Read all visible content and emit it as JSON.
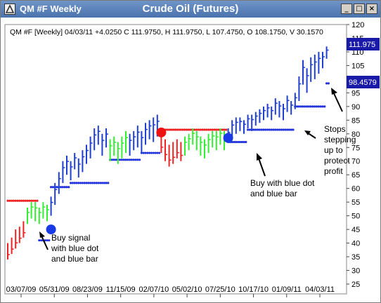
{
  "window": {
    "symbol_title": "QM #F Weekly",
    "chart_title": "Crude Oil (Futures)",
    "min_glyph": "_",
    "max_glyph": "□",
    "close_glyph": "×"
  },
  "info_line": "QM #F [Weekly] 04/03/11  +4.0250 C 111.9750, H 111.9750, L 107.4750, O 108.1750, V 30.1570",
  "price_labels": {
    "last_price": "111.975",
    "stop_price": "98.4579"
  },
  "annotations": {
    "buy_signal": [
      "Buy signal",
      "with blue dot",
      "and blue bar"
    ],
    "buy_again": [
      "Buy with blue dot",
      "and blue bar"
    ],
    "stops": [
      "Stops",
      "stepping",
      "up to",
      "protect",
      "profit"
    ]
  },
  "colors": {
    "up": "#1f3fd0",
    "neutral": "#33ee33",
    "down": "#ee2222",
    "stop_long": "#2233dd",
    "stop_short": "#ee2222",
    "title_bar": "#5a80b8"
  },
  "chart_data": {
    "type": "bar",
    "title": "Crude Oil (Futures)",
    "period": "Weekly",
    "x_tick_labels": [
      "03/07/09",
      "05/31/09",
      "08/23/09",
      "11/15/09",
      "02/07/10",
      "05/02/10",
      "07/25/10",
      "10/17/10",
      "01/09/11",
      "04/03/11"
    ],
    "y_ticks": [
      25,
      30,
      35,
      40,
      45,
      50,
      55,
      60,
      65,
      70,
      75,
      80,
      85,
      90,
      95,
      100,
      105,
      110,
      115,
      120
    ],
    "ylim": [
      25,
      120
    ],
    "last_bar": {
      "date": "04/03/11",
      "change": 4.025,
      "close": 111.975,
      "high": 111.975,
      "low": 107.475,
      "open": 108.175,
      "volume": 30.157
    },
    "bars_by_phase": [
      {
        "color": "down",
        "start": 0,
        "values": [
          [
            34,
            40
          ],
          [
            36,
            42
          ],
          [
            38,
            45
          ],
          [
            40,
            46
          ],
          [
            42,
            48
          ]
        ]
      },
      {
        "color": "neutral",
        "start": 5,
        "values": [
          [
            47,
            53
          ],
          [
            49,
            55
          ],
          [
            48,
            55
          ],
          [
            47,
            53
          ],
          [
            49,
            55
          ],
          [
            48,
            54
          ]
        ]
      },
      {
        "color": "up",
        "start": 11,
        "values": [
          [
            50,
            57
          ],
          [
            54,
            62
          ],
          [
            58,
            66
          ],
          [
            62,
            70
          ],
          [
            65,
            72
          ],
          [
            63,
            70
          ],
          [
            67,
            73
          ],
          [
            64,
            71
          ],
          [
            66,
            74
          ],
          [
            69,
            76
          ],
          [
            71,
            79
          ],
          [
            74,
            82
          ],
          [
            76,
            83
          ],
          [
            72,
            80
          ],
          [
            75,
            82
          ]
        ]
      },
      {
        "color": "neutral",
        "start": 26,
        "values": [
          [
            70,
            78
          ],
          [
            72,
            79
          ],
          [
            69,
            77
          ],
          [
            71,
            79
          ],
          [
            73,
            81
          ]
        ]
      },
      {
        "color": "up",
        "start": 31,
        "values": [
          [
            72,
            80
          ],
          [
            74,
            81
          ],
          [
            75,
            83
          ],
          [
            73,
            81
          ],
          [
            76,
            84
          ],
          [
            78,
            85
          ],
          [
            77,
            86
          ],
          [
            79,
            87
          ]
        ]
      },
      {
        "color": "down",
        "start": 39,
        "values": [
          [
            73,
            80
          ],
          [
            70,
            78
          ],
          [
            68,
            76
          ],
          [
            69,
            77
          ],
          [
            71,
            78
          ],
          [
            70,
            77
          ]
        ]
      },
      {
        "color": "neutral",
        "start": 45,
        "values": [
          [
            72,
            79
          ],
          [
            74,
            80
          ],
          [
            76,
            82
          ],
          [
            74,
            81
          ],
          [
            72,
            79
          ],
          [
            71,
            78
          ],
          [
            73,
            80
          ],
          [
            75,
            81
          ],
          [
            74,
            81
          ],
          [
            76,
            82
          ],
          [
            74,
            81
          ]
        ]
      },
      {
        "color": "up",
        "start": 56,
        "values": [
          [
            77,
            82
          ],
          [
            79,
            85
          ],
          [
            80,
            86
          ],
          [
            81,
            86
          ],
          [
            80,
            85
          ],
          [
            82,
            87
          ],
          [
            81,
            87
          ],
          [
            83,
            88
          ],
          [
            84,
            89
          ],
          [
            85,
            90
          ],
          [
            86,
            91
          ],
          [
            85,
            90
          ],
          [
            87,
            93
          ],
          [
            86,
            92
          ],
          [
            85,
            91
          ],
          [
            88,
            94
          ],
          [
            87,
            92
          ],
          [
            89,
            95
          ],
          [
            92,
            101
          ],
          [
            98,
            107
          ],
          [
            95,
            104
          ],
          [
            99,
            108
          ],
          [
            100,
            109
          ],
          [
            102,
            110
          ],
          [
            104,
            110
          ],
          [
            107.475,
            111.975
          ]
        ]
      }
    ],
    "stop_lines": [
      {
        "type": "short",
        "start": 0,
        "end": 8,
        "value": 55.5
      },
      {
        "type": "long",
        "start": 8,
        "end": 11,
        "value": 41
      },
      {
        "type": "long",
        "start": 11,
        "end": 16,
        "value": 60.5
      },
      {
        "type": "long",
        "start": 16,
        "end": 26,
        "value": 62
      },
      {
        "type": "long",
        "start": 26,
        "end": 34,
        "value": 70.5
      },
      {
        "type": "long",
        "start": 34,
        "end": 39,
        "value": 73
      },
      {
        "type": "short",
        "start": 39,
        "end": 56,
        "value": 81.5
      },
      {
        "type": "long",
        "start": 56,
        "end": 61,
        "value": 77
      },
      {
        "type": "long",
        "start": 61,
        "end": 73,
        "value": 81.5
      },
      {
        "type": "long",
        "start": 73,
        "end": 81,
        "value": 90
      },
      {
        "type": "long",
        "start": 81,
        "end": 82,
        "value": 98.4579
      }
    ],
    "signals": [
      {
        "type": "buy",
        "index": 11,
        "value": 45
      },
      {
        "type": "sell",
        "index": 39,
        "value": 80.5
      },
      {
        "type": "buy",
        "index": 56,
        "value": 78.5
      }
    ]
  }
}
